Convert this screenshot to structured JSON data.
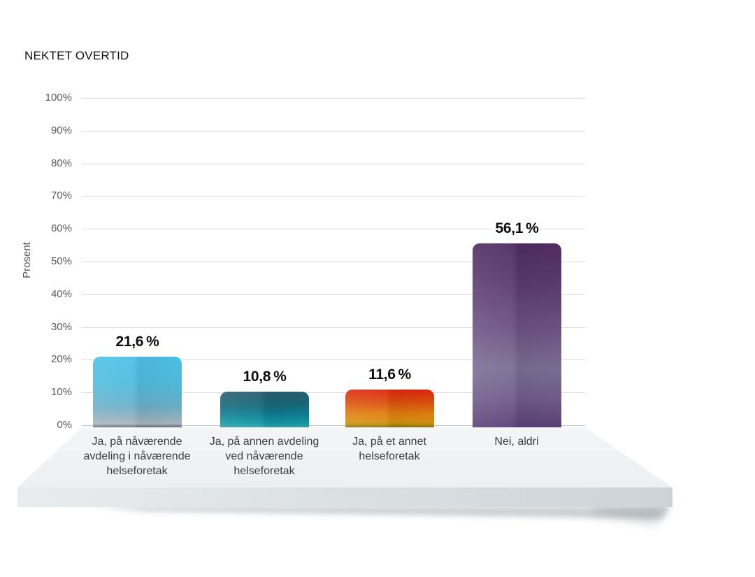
{
  "page": {
    "background": "#ffffff"
  },
  "header": {
    "title": "NEKTET OVERTID"
  },
  "chart_data": {
    "type": "bar",
    "title": "NEKTET OVERTID",
    "xlabel": "",
    "ylabel": "Prosent",
    "ylim": [
      0,
      100
    ],
    "grid": true,
    "legend": false,
    "y_ticks": [
      {
        "value": 0,
        "label": "0%"
      },
      {
        "value": 10,
        "label": "10%"
      },
      {
        "value": 20,
        "label": "20%"
      },
      {
        "value": 30,
        "label": "30%"
      },
      {
        "value": 40,
        "label": "40%"
      },
      {
        "value": 50,
        "label": "50%"
      },
      {
        "value": 60,
        "label": "60%"
      },
      {
        "value": 70,
        "label": "70%"
      },
      {
        "value": 80,
        "label": "80%"
      },
      {
        "value": 90,
        "label": "90%"
      },
      {
        "value": 100,
        "label": "100%"
      }
    ],
    "categories": [
      {
        "label": "Ja, på nåværende avdeling i nåværende helseforetak",
        "lines": [
          "Ja, på nåværende",
          "avdeling i nåværende",
          "helseforetak"
        ]
      },
      {
        "label": "Ja, på annen avdeling ved nåværende helseforetak",
        "lines": [
          "Ja, på annen avdeling",
          "ved nåværende",
          "helseforetak"
        ]
      },
      {
        "label": "Ja, på et annet helseforetak",
        "lines": [
          "Ja, på et annet",
          "helseforetak"
        ]
      },
      {
        "label": "Nei, aldri",
        "lines": [
          "Nei, aldri"
        ]
      }
    ],
    "values": [
      21.6,
      10.8,
      11.6,
      56.1
    ],
    "value_labels": [
      "21,6 %",
      "10,8 %",
      "11,6 %",
      "56,1 %"
    ],
    "bar_colors": [
      "#4ec2e7",
      "#0e7f94",
      "#e12610",
      "#5c4078"
    ],
    "bar_gradients": [
      [
        "#4ec2e7 0%",
        "#52bcdd 40%",
        "#6fb0c8 72%",
        "#9db3bf 90%",
        "#a9b6bf 95%",
        "#5e6e7a 100%"
      ],
      [
        "#2b5f6e 0%",
        "#17687a 35%",
        "#0e7f94 65%",
        "#149aa5 88%",
        "#35a3a6 100%"
      ],
      [
        "#e12610 0%",
        "#dd4b0f 30%",
        "#e07c10 62%",
        "#d99110 85%",
        "#b98a10 93%",
        "#84700f 100%"
      ],
      [
        "#512c63 0%",
        "#5a3a6f 20%",
        "#6c5183 45%",
        "#7c6f96 68%",
        "#6f5c8b 85%",
        "#5c4078 100%"
      ]
    ],
    "gridline_color": "#d9dadb",
    "baseline_color": "#c3c6c8",
    "text_colors": {
      "title": "#111111",
      "ticks": "#58595b",
      "categories": "#3d3d3d",
      "values": "#0d0d0d"
    }
  },
  "platform": {
    "surface_top": "#f4f5f6",
    "surface_bottom": "#edeff0",
    "front_left": "#e9eced",
    "front_right": "#ccd4d8",
    "shadow": "#8f9aa0"
  }
}
